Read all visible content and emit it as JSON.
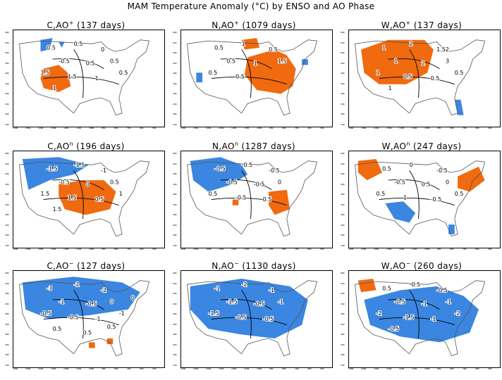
{
  "title": "MAM Temperature Anomaly (°C) by ENSO and AO Phase",
  "colors": {
    "warm": "#f06a10",
    "cool": "#3a86e0",
    "land_outline": "#555555",
    "contour": "#000000"
  },
  "lon_ticks": [
    "160W",
    "150W",
    "140W",
    "130W",
    "120W",
    "110W",
    "100W",
    "90W",
    "80W",
    "70W",
    "60W",
    "50W"
  ],
  "lat_ticks": [
    "60N",
    "55N",
    "50N",
    "45N",
    "40N",
    "35N",
    "30N",
    "25N",
    "20N",
    "15N"
  ],
  "chart_data": [
    {
      "type": "heatmap",
      "panel": "C,AO+",
      "title_prefix": "C,AO",
      "sup": "+",
      "days": "(137 days)",
      "warm": [
        [
          [
            0.2,
            0.4
          ],
          [
            0.3,
            0.36
          ],
          [
            0.36,
            0.44
          ],
          [
            0.38,
            0.58
          ],
          [
            0.3,
            0.64
          ],
          [
            0.2,
            0.6
          ],
          [
            0.18,
            0.5
          ]
        ]
      ],
      "cool": [
        [
          [
            0.18,
            0.1
          ],
          [
            0.26,
            0.08
          ],
          [
            0.24,
            0.2
          ],
          [
            0.18,
            0.22
          ]
        ],
        [
          [
            0.3,
            0.12
          ],
          [
            0.34,
            0.12
          ],
          [
            0.32,
            0.18
          ]
        ]
      ],
      "contour_labels": [
        "0.5",
        "0.5",
        "0",
        "-0.5",
        "0.5",
        "0.5",
        "1.5",
        "1.5",
        "1",
        "0.5",
        "1"
      ]
    },
    {
      "type": "heatmap",
      "panel": "N,AO+",
      "title_prefix": "N,AO",
      "sup": "+",
      "days": "(1079 days)",
      "warm": [
        [
          [
            0.44,
            0.28
          ],
          [
            0.62,
            0.2
          ],
          [
            0.7,
            0.26
          ],
          [
            0.76,
            0.4
          ],
          [
            0.74,
            0.58
          ],
          [
            0.66,
            0.66
          ],
          [
            0.5,
            0.62
          ],
          [
            0.42,
            0.46
          ]
        ],
        [
          [
            0.4,
            0.1
          ],
          [
            0.5,
            0.08
          ],
          [
            0.52,
            0.18
          ],
          [
            0.42,
            0.2
          ]
        ]
      ],
      "cool": [
        [
          [
            0.1,
            0.44
          ],
          [
            0.14,
            0.44
          ],
          [
            0.14,
            0.54
          ],
          [
            0.1,
            0.54
          ]
        ],
        [
          [
            0.8,
            0.3
          ],
          [
            0.84,
            0.3
          ],
          [
            0.84,
            0.36
          ],
          [
            0.8,
            0.36
          ]
        ]
      ],
      "contour_labels": [
        "0.5",
        "1",
        "0.5",
        "0.5",
        "1",
        "1.5",
        "0.5",
        "0.5"
      ]
    },
    {
      "type": "heatmap",
      "panel": "W,AO+",
      "title_prefix": "W,AO",
      "sup": "+",
      "days": "(137 days)",
      "warm": [
        [
          [
            0.08,
            0.2
          ],
          [
            0.26,
            0.1
          ],
          [
            0.5,
            0.1
          ],
          [
            0.56,
            0.2
          ],
          [
            0.52,
            0.44
          ],
          [
            0.38,
            0.56
          ],
          [
            0.2,
            0.56
          ],
          [
            0.1,
            0.44
          ]
        ]
      ],
      "cool": [
        [
          [
            0.7,
            0.72
          ],
          [
            0.74,
            0.72
          ],
          [
            0.76,
            0.88
          ],
          [
            0.72,
            0.88
          ]
        ]
      ],
      "contour_labels": [
        "1",
        "2",
        "1.52",
        "1",
        "2",
        "3",
        "1",
        "0.5",
        "0.5",
        "0.5",
        "1"
      ]
    },
    {
      "type": "heatmap",
      "panel": "C,AOn",
      "title_prefix": "C,AO",
      "sup": "n",
      "days": "(196 days)",
      "warm": [
        [
          [
            0.3,
            0.34
          ],
          [
            0.46,
            0.3
          ],
          [
            0.6,
            0.3
          ],
          [
            0.68,
            0.42
          ],
          [
            0.64,
            0.6
          ],
          [
            0.48,
            0.66
          ],
          [
            0.34,
            0.6
          ],
          [
            0.3,
            0.46
          ]
        ]
      ],
      "cool": [
        [
          [
            0.06,
            0.08
          ],
          [
            0.3,
            0.06
          ],
          [
            0.5,
            0.14
          ],
          [
            0.4,
            0.24
          ],
          [
            0.24,
            0.3
          ],
          [
            0.1,
            0.4
          ]
        ]
      ],
      "contour_labels": [
        "-1.5",
        "-1.5",
        "-1",
        "-0.5",
        "0",
        "0.5",
        "1.5",
        "1.5",
        "0.5",
        "1",
        "1.5"
      ]
    },
    {
      "type": "heatmap",
      "panel": "N,AOn",
      "title_prefix": "N,AO",
      "sup": "n",
      "days": "(1287 days)",
      "warm": [
        [
          [
            0.58,
            0.42
          ],
          [
            0.7,
            0.4
          ],
          [
            0.72,
            0.6
          ],
          [
            0.62,
            0.66
          ],
          [
            0.58,
            0.56
          ]
        ],
        [
          [
            0.34,
            0.5
          ],
          [
            0.38,
            0.5
          ],
          [
            0.38,
            0.56
          ],
          [
            0.34,
            0.56
          ]
        ]
      ],
      "cool": [
        [
          [
            0.06,
            0.1
          ],
          [
            0.26,
            0.06
          ],
          [
            0.4,
            0.14
          ],
          [
            0.44,
            0.24
          ],
          [
            0.34,
            0.34
          ],
          [
            0.18,
            0.42
          ],
          [
            0.08,
            0.3
          ]
        ]
      ],
      "contour_labels": [
        "-0.5",
        "-0.5",
        "-0.5",
        "-0.5",
        "-0.5",
        "0",
        "0.5",
        "-0.5",
        "0.5"
      ]
    },
    {
      "type": "heatmap",
      "panel": "W,AOn",
      "title_prefix": "W,AO",
      "sup": "n",
      "days": "(247 days)",
      "warm": [
        [
          [
            0.06,
            0.1
          ],
          [
            0.18,
            0.08
          ],
          [
            0.22,
            0.22
          ],
          [
            0.12,
            0.3
          ],
          [
            0.06,
            0.22
          ]
        ],
        [
          [
            0.72,
            0.26
          ],
          [
            0.86,
            0.16
          ],
          [
            0.9,
            0.3
          ],
          [
            0.8,
            0.42
          ],
          [
            0.72,
            0.38
          ]
        ]
      ],
      "cool": [
        [
          [
            0.24,
            0.54
          ],
          [
            0.36,
            0.52
          ],
          [
            0.44,
            0.64
          ],
          [
            0.4,
            0.74
          ],
          [
            0.3,
            0.7
          ]
        ],
        [
          [
            0.66,
            0.76
          ],
          [
            0.7,
            0.76
          ],
          [
            0.7,
            0.86
          ],
          [
            0.66,
            0.86
          ]
        ]
      ],
      "contour_labels": [
        "0.5",
        "0",
        "-0.5",
        "-0.5",
        "0.5",
        "0",
        "0.5",
        "1",
        "-0.5",
        "0.5"
      ]
    },
    {
      "type": "heatmap",
      "panel": "C,AO-",
      "title_prefix": "C,AO",
      "sup": "−",
      "days": "(127 days)",
      "warm": [
        [
          [
            0.5,
            0.74
          ],
          [
            0.54,
            0.74
          ],
          [
            0.54,
            0.8
          ],
          [
            0.5,
            0.8
          ]
        ],
        [
          [
            0.62,
            0.7
          ],
          [
            0.66,
            0.7
          ],
          [
            0.66,
            0.76
          ],
          [
            0.62,
            0.76
          ]
        ]
      ],
      "cool": [
        [
          [
            0.06,
            0.12
          ],
          [
            0.4,
            0.06
          ],
          [
            0.72,
            0.12
          ],
          [
            0.84,
            0.22
          ],
          [
            0.76,
            0.4
          ],
          [
            0.5,
            0.46
          ],
          [
            0.24,
            0.5
          ],
          [
            0.08,
            0.4
          ]
        ]
      ],
      "contour_labels": [
        "-3",
        "-2",
        "-2",
        "-1",
        "-0.5",
        "0",
        "-0.5",
        "-0.5",
        "-1",
        "-1",
        "0.5",
        "0.5",
        "0.5",
        "0"
      ]
    },
    {
      "type": "heatmap",
      "panel": "N,AO-",
      "title_prefix": "N,AO",
      "sup": "−",
      "days": "(1130 days)",
      "warm": [],
      "cool": [
        [
          [
            0.06,
            0.16
          ],
          [
            0.4,
            0.08
          ],
          [
            0.72,
            0.16
          ],
          [
            0.84,
            0.3
          ],
          [
            0.8,
            0.56
          ],
          [
            0.62,
            0.7
          ],
          [
            0.4,
            0.66
          ],
          [
            0.18,
            0.6
          ],
          [
            0.06,
            0.4
          ]
        ]
      ],
      "contour_labels": [
        "-1",
        "-2",
        "-1",
        "-1.5",
        "-0.5",
        "-1",
        "-1.5",
        "-0.5",
        "-0.5"
      ]
    },
    {
      "type": "heatmap",
      "panel": "W,AO-",
      "title_prefix": "W,AO",
      "sup": "−",
      "days": "(260 days)",
      "warm": [
        [
          [
            0.06,
            0.1
          ],
          [
            0.16,
            0.08
          ],
          [
            0.18,
            0.2
          ],
          [
            0.08,
            0.22
          ]
        ]
      ],
      "cool": [
        [
          [
            0.1,
            0.3
          ],
          [
            0.34,
            0.2
          ],
          [
            0.58,
            0.16
          ],
          [
            0.76,
            0.26
          ],
          [
            0.86,
            0.4
          ],
          [
            0.8,
            0.64
          ],
          [
            0.6,
            0.74
          ],
          [
            0.34,
            0.68
          ],
          [
            0.14,
            0.56
          ]
        ]
      ],
      "contour_labels": [
        "0.5",
        "-0.5",
        "-0.5",
        "-0.5",
        "-1",
        "-1",
        "-2",
        "-1.5",
        "-1",
        "-2",
        "-0.5"
      ]
    }
  ]
}
